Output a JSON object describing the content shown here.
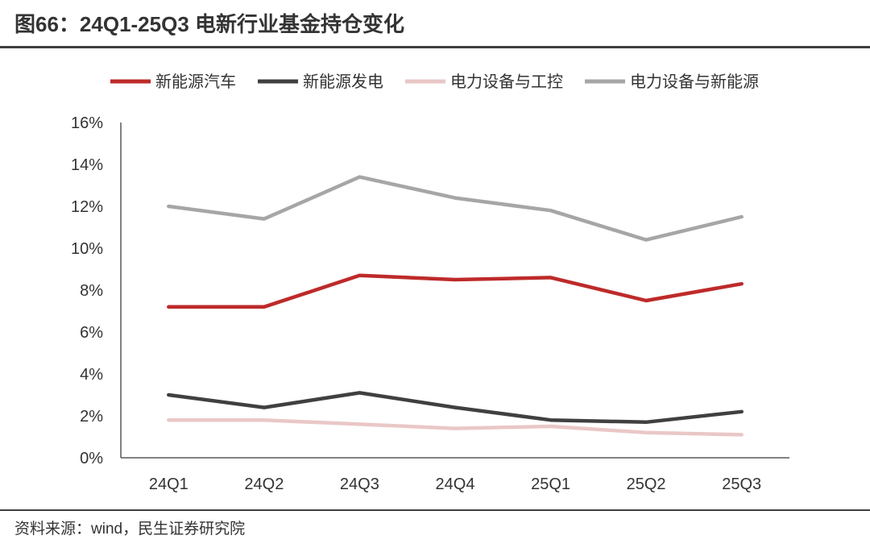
{
  "chart_data": {
    "type": "line",
    "title": "图66：24Q1-25Q3 电新行业基金持仓变化",
    "categories": [
      "24Q1",
      "24Q2",
      "24Q3",
      "24Q4",
      "25Q1",
      "25Q2",
      "25Q3"
    ],
    "ylim": [
      0,
      16
    ],
    "y_ticks": [
      {
        "value": 0,
        "label": "0%"
      },
      {
        "value": 2,
        "label": "2%"
      },
      {
        "value": 4,
        "label": "4%"
      },
      {
        "value": 6,
        "label": "6%"
      },
      {
        "value": 8,
        "label": "8%"
      },
      {
        "value": 10,
        "label": "10%"
      },
      {
        "value": 12,
        "label": "12%"
      },
      {
        "value": 14,
        "label": "14%"
      },
      {
        "value": 16,
        "label": "16%"
      }
    ],
    "series": [
      {
        "name": "新能源汽车",
        "color": "#BE2A2A",
        "values": [
          7.2,
          7.2,
          8.7,
          8.5,
          8.6,
          7.5,
          8.3
        ]
      },
      {
        "name": "新能源发电",
        "color": "#404040",
        "values": [
          3.0,
          2.4,
          3.1,
          2.4,
          1.8,
          1.7,
          2.2
        ]
      },
      {
        "name": "电力设备与工控",
        "color": "#EAC7C7",
        "values": [
          1.8,
          1.8,
          1.6,
          1.4,
          1.5,
          1.2,
          1.1
        ]
      },
      {
        "name": "电力设备与新能源",
        "color": "#A6A6A6",
        "values": [
          12.0,
          11.4,
          13.4,
          12.4,
          11.8,
          10.4,
          11.5
        ]
      }
    ],
    "legend_position": "top",
    "grid": false
  },
  "footer": {
    "source": "资料来源：wind，民生证券研究院"
  }
}
